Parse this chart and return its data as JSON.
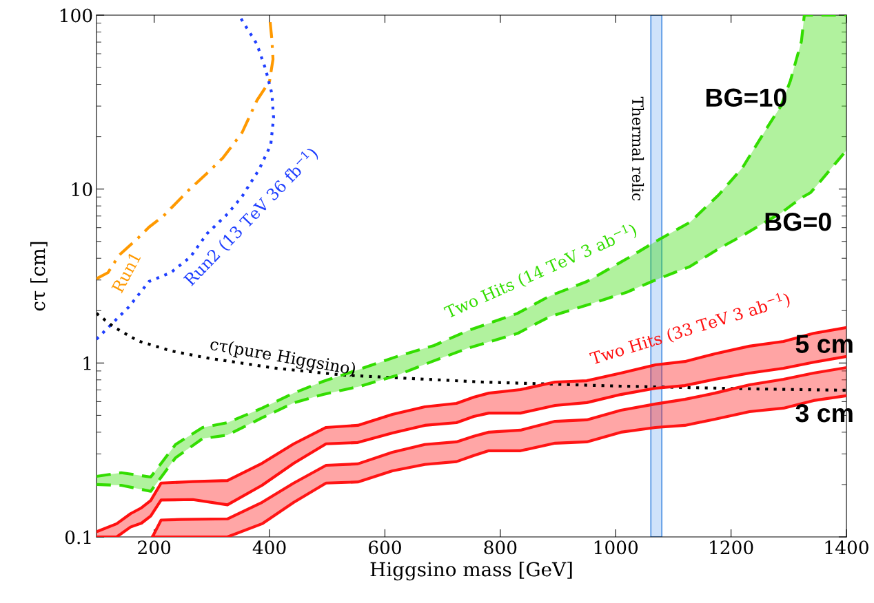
{
  "chart_data": {
    "type": "line",
    "xlabel": "Higgsino mass [GeV]",
    "ylabel": "cτ [cm]",
    "log": "y",
    "xlim": [
      100,
      1400
    ],
    "xticks": [
      200,
      400,
      600,
      800,
      1000,
      1200,
      1400
    ],
    "ylim": [
      0.1,
      100
    ],
    "yticks": [
      0.1,
      1,
      10,
      100
    ],
    "series": [
      {
        "name": "Run1",
        "color": "#ff9900",
        "line_style": "dashdot",
        "x": [
          100,
          120,
          139,
          173,
          191,
          216,
          259,
          289,
          319,
          352,
          378,
          400,
          406,
          404,
          401
        ],
        "values": [
          3.05,
          3.31,
          4.16,
          5.27,
          6.04,
          7.0,
          9.8,
          12.1,
          15.1,
          21.0,
          32.3,
          41.7,
          55.8,
          72.6,
          91.2
        ]
      },
      {
        "name": "Run2 (13 TeV 36 fb$^{−1}$)",
        "color": "#1f3fff",
        "line_style": "dotted",
        "x": [
          100,
          126,
          156,
          191,
          229,
          263,
          292,
          327,
          352,
          382,
          402,
          407,
          404,
          393,
          378,
          349
        ],
        "values": [
          1.37,
          1.67,
          2.1,
          2.94,
          3.31,
          4.08,
          5.56,
          7.19,
          9.03,
          13.0,
          17.9,
          25.7,
          35.4,
          49.1,
          68.2,
          97.2
        ]
      },
      {
        "name": "cτ(pure Higgsino)",
        "color": "#000000",
        "line_style": "dotted",
        "x": [
          100,
          130,
          172,
          231,
          291,
          411,
          530,
          650,
          769,
          889,
          1008,
          1128,
          1247,
          1400
        ],
        "values": [
          1.93,
          1.61,
          1.34,
          1.17,
          1.07,
          0.933,
          0.851,
          0.813,
          0.777,
          0.756,
          0.736,
          0.722,
          0.709,
          0.697
        ]
      },
      {
        "name": "Two Hits (14 TeV 3 ab$^{−1}$)",
        "color": "#33dd00",
        "line_style": "dashed",
        "x": [
          100,
          143,
          194,
          237,
          284,
          327,
          387,
          442,
          493,
          558,
          621,
          685,
          745,
          830,
          886,
          950,
          1019,
          1069,
          1129,
          1179,
          1220,
          1259,
          1287,
          1303,
          1322,
          1327,
          1338,
          1351,
          1400
        ],
        "values": [
          0.223,
          0.234,
          0.221,
          0.34,
          0.426,
          0.454,
          0.55,
          0.671,
          0.784,
          0.925,
          1.09,
          1.26,
          1.54,
          1.93,
          2.43,
          2.94,
          3.97,
          4.99,
          6.45,
          9.29,
          13.3,
          21.6,
          30.3,
          42.1,
          70.8,
          100,
          100,
          100,
          100
        ],
        "upper": [
          0.223,
          0.234,
          0.221,
          0.34,
          0.426,
          0.454,
          0.55,
          0.671,
          0.784,
          0.925,
          1.09,
          1.26,
          1.54,
          1.93,
          2.43,
          2.94,
          3.97,
          4.99,
          6.45,
          9.29,
          13.3,
          21.6,
          30.3,
          42.1,
          70.8,
          100,
          100,
          100,
          100
        ],
        "lower": [
          0.2,
          0.198,
          0.183,
          0.285,
          0.368,
          0.385,
          0.484,
          0.59,
          0.66,
          0.736,
          0.85,
          1.03,
          1.22,
          1.48,
          1.85,
          2.15,
          2.55,
          3.0,
          3.59,
          4.55,
          5.4,
          6.45,
          7.3,
          8.0,
          8.9,
          9.1,
          9.55,
          10.7,
          16.7
        ]
      },
      {
        "color": "#33dd00",
        "line_style": "dashed",
        "x": [
          100,
          143,
          194,
          237,
          284,
          327,
          387,
          442,
          493,
          558,
          621,
          685,
          745,
          830,
          886,
          950,
          1019,
          1069,
          1129,
          1179,
          1220,
          1259,
          1287,
          1303,
          1322,
          1327,
          1338,
          1351,
          1400
        ],
        "values": [
          0.2,
          0.198,
          0.183,
          0.285,
          0.368,
          0.385,
          0.484,
          0.59,
          0.66,
          0.736,
          0.85,
          1.03,
          1.22,
          1.48,
          1.85,
          2.15,
          2.55,
          3.0,
          3.59,
          4.55,
          5.4,
          6.45,
          7.3,
          8.0,
          8.9,
          9.1,
          9.55,
          10.7,
          16.7
        ]
      },
      {
        "name": "Two Hits (33 TeV 3 ab$^{−1}$)",
        "color": "#ff1010",
        "line_style": "solid",
        "x": [
          100,
          135,
          159,
          178,
          194,
          212,
          267,
          327,
          387,
          442,
          498,
          553,
          613,
          669,
          724,
          754,
          780,
          835,
          895,
          950,
          1009,
          1069,
          1120,
          1172,
          1232,
          1291,
          1343,
          1400
        ],
        "values": [
          0.107,
          0.119,
          0.136,
          0.147,
          0.162,
          0.204,
          0.208,
          0.211,
          0.265,
          0.343,
          0.426,
          0.438,
          0.506,
          0.56,
          0.586,
          0.636,
          0.671,
          0.703,
          0.777,
          0.791,
          0.875,
          0.976,
          1.02,
          1.13,
          1.25,
          1.33,
          1.48,
          1.6
        ],
        "upper": [
          0.107,
          0.119,
          0.136,
          0.147,
          0.162,
          0.204,
          0.208,
          0.211,
          0.265,
          0.343,
          0.426,
          0.438,
          0.506,
          0.56,
          0.586,
          0.636,
          0.671,
          0.703,
          0.777,
          0.791,
          0.875,
          0.976,
          1.02,
          1.13,
          1.25,
          1.33,
          1.48,
          1.6
        ],
        "lower": [
          0.1,
          0.1,
          0.114,
          0.12,
          0.132,
          0.163,
          0.164,
          0.153,
          0.198,
          0.265,
          0.343,
          0.349,
          0.396,
          0.438,
          0.454,
          0.493,
          0.515,
          0.515,
          0.57,
          0.592,
          0.659,
          0.716,
          0.742,
          0.806,
          0.875,
          0.933,
          1.01,
          1.09
        ]
      },
      {
        "color": "#ff1010",
        "line_style": "solid",
        "x": [
          100,
          135,
          159,
          178,
          194,
          212,
          267,
          327,
          387,
          442,
          498,
          553,
          613,
          669,
          724,
          754,
          780,
          835,
          895,
          950,
          1009,
          1069,
          1120,
          1172,
          1232,
          1291,
          1343,
          1400
        ],
        "values": [
          0.1,
          0.1,
          0.114,
          0.12,
          0.132,
          0.163,
          0.164,
          0.153,
          0.198,
          0.265,
          0.343,
          0.349,
          0.396,
          0.438,
          0.454,
          0.493,
          0.515,
          0.515,
          0.57,
          0.592,
          0.659,
          0.716,
          0.742,
          0.806,
          0.875,
          0.933,
          1.01,
          1.09
        ]
      },
      {
        "color": "#ff1414",
        "line_style": "solid",
        "x": [
          197,
          212,
          246,
          327,
          387,
          442,
          498,
          553,
          613,
          669,
          724,
          754,
          780,
          835,
          895,
          950,
          1009,
          1069,
          1120,
          1172,
          1232,
          1291,
          1343,
          1400
        ],
        "values": [
          0.1,
          0.125,
          0.126,
          0.127,
          0.158,
          0.204,
          0.258,
          0.263,
          0.307,
          0.34,
          0.352,
          0.379,
          0.4,
          0.411,
          0.462,
          0.471,
          0.535,
          0.581,
          0.618,
          0.671,
          0.749,
          0.806,
          0.875,
          0.941
        ],
        "upper": [
          0.1,
          0.125,
          0.126,
          0.127,
          0.158,
          0.204,
          0.258,
          0.263,
          0.307,
          0.34,
          0.352,
          0.379,
          0.4,
          0.411,
          0.462,
          0.471,
          0.535,
          0.581,
          0.618,
          0.671,
          0.749,
          0.806,
          0.875,
          0.941
        ],
        "lower": [
          0.1,
          0.1,
          0.1,
          0.1,
          0.119,
          0.158,
          0.204,
          0.207,
          0.24,
          0.261,
          0.271,
          0.294,
          0.313,
          0.313,
          0.346,
          0.352,
          0.4,
          0.426,
          0.438,
          0.475,
          0.525,
          0.55,
          0.608,
          0.648
        ]
      },
      {
        "color": "#ff1414",
        "line_style": "solid",
        "x": [
          197,
          212,
          246,
          327,
          387,
          442,
          498,
          553,
          613,
          669,
          724,
          754,
          780,
          835,
          895,
          950,
          1009,
          1069,
          1120,
          1172,
          1232,
          1291,
          1343,
          1400
        ],
        "values": [
          0.1,
          0.1,
          0.1,
          0.1,
          0.119,
          0.158,
          0.204,
          0.207,
          0.24,
          0.261,
          0.271,
          0.294,
          0.313,
          0.313,
          0.346,
          0.352,
          0.4,
          0.426,
          0.438,
          0.475,
          0.525,
          0.55,
          0.608,
          0.648
        ]
      }
    ],
    "bands": [
      {
        "axis": "x",
        "from": 1061,
        "to": 1080,
        "label": "Thermal relic",
        "color": "#cfe2fa"
      }
    ],
    "annotations": [
      "BG=10",
      "BG=0",
      "5 cm",
      "3 cm"
    ]
  }
}
